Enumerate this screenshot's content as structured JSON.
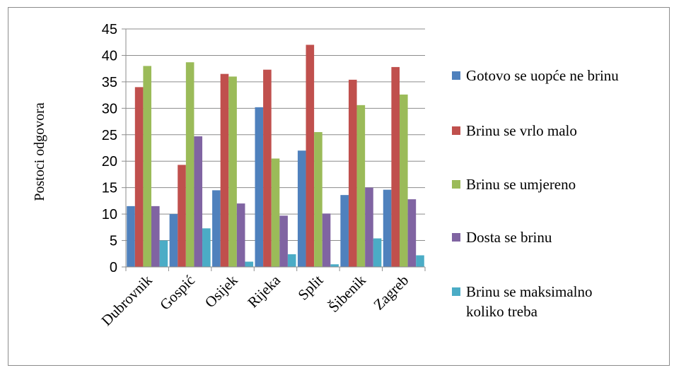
{
  "chart_data": {
    "type": "bar",
    "title": "",
    "xlabel": "",
    "ylabel": "Postoci odgovora",
    "ylim": [
      0,
      45
    ],
    "ytick_step": 5,
    "grid": "horizontal",
    "legend_position": "right",
    "categories": [
      "Dubrovnik",
      "Gospić",
      "Osijek",
      "Rijeka",
      "Split",
      "Šibenik",
      "Zagreb"
    ],
    "series": [
      {
        "name": "Gotovo se uopće ne brinu",
        "color": "#4f81bd",
        "values": [
          11.5,
          10.0,
          14.5,
          30.2,
          22.0,
          13.6,
          14.6
        ]
      },
      {
        "name": "Brinu se vrlo malo",
        "color": "#c0504d",
        "values": [
          34.0,
          19.3,
          36.5,
          37.3,
          42.0,
          35.4,
          37.8
        ]
      },
      {
        "name": "Brinu se umjereno",
        "color": "#9bbb59",
        "values": [
          38.0,
          38.7,
          36.0,
          20.5,
          25.5,
          30.6,
          32.6
        ]
      },
      {
        "name": "Dosta se brinu",
        "color": "#8064a2",
        "values": [
          11.5,
          24.7,
          12.0,
          9.7,
          10.1,
          15.0,
          12.8
        ]
      },
      {
        "name": "Brinu se maksimalno koliko treba",
        "color": "#4bacc6",
        "values": [
          5.0,
          7.3,
          1.0,
          2.4,
          0.5,
          5.4,
          2.2
        ]
      }
    ]
  }
}
